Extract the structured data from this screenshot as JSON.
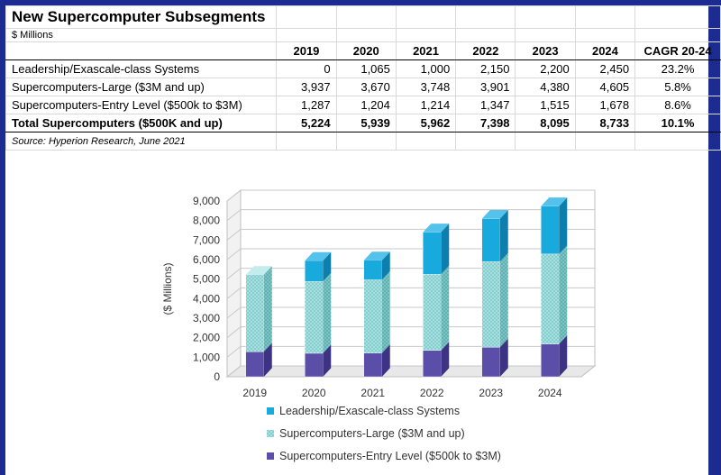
{
  "table": {
    "title": "New Supercomputer Subsegments",
    "units": "$ Millions",
    "headers": [
      "",
      "2019",
      "2020",
      "2021",
      "2022",
      "2023",
      "2024",
      "CAGR 20-24"
    ],
    "rows": [
      [
        "Leadership/Exascale-class Systems",
        "0",
        "1,065",
        "1,000",
        "2,150",
        "2,200",
        "2,450",
        "23.2%"
      ],
      [
        "Supercomputers-Large ($3M and up)",
        "3,937",
        "3,670",
        "3,748",
        "3,901",
        "4,380",
        "4,605",
        "5.8%"
      ],
      [
        "Supercomputers-Entry Level ($500k to $3M)",
        "1,287",
        "1,204",
        "1,214",
        "1,347",
        "1,515",
        "1,678",
        "8.6%"
      ],
      [
        "Total Supercomputers ($500K and up)",
        "5,224",
        "5,939",
        "5,962",
        "7,398",
        "8,095",
        "8,733",
        "10.1%"
      ]
    ],
    "source": "Source: Hyperion Research, June 2021"
  },
  "chart_data": {
    "type": "bar",
    "stacked": true,
    "three_d": true,
    "categories": [
      "2019",
      "2020",
      "2021",
      "2022",
      "2023",
      "2024"
    ],
    "series": [
      {
        "name": "Supercomputers-Entry Level ($500k to $3M)",
        "values": [
          1287,
          1204,
          1214,
          1347,
          1515,
          1678
        ],
        "color": "#5b4ea8",
        "pattern": "solid"
      },
      {
        "name": "Supercomputers-Large ($3M and up)",
        "values": [
          3937,
          3670,
          3748,
          3901,
          4380,
          4605
        ],
        "color": "#9fdcdc",
        "pattern": "dotted"
      },
      {
        "name": "Leadership/Exascale-class Systems",
        "values": [
          0,
          1065,
          1000,
          2150,
          2200,
          2450
        ],
        "color": "#18a9dd",
        "pattern": "solid"
      }
    ],
    "legend_order": [
      "Leadership/Exascale-class Systems",
      "Supercomputers-Large ($3M and up)",
      "Supercomputers-Entry Level ($500k to $3M)"
    ],
    "ylabel": "($ Millions)",
    "ylim": [
      0,
      9000
    ],
    "yticks": [
      "0",
      "1,000",
      "2,000",
      "3,000",
      "4,000",
      "5,000",
      "6,000",
      "7,000",
      "8,000",
      "9,000"
    ],
    "grid": true,
    "legend_position": "bottom"
  }
}
